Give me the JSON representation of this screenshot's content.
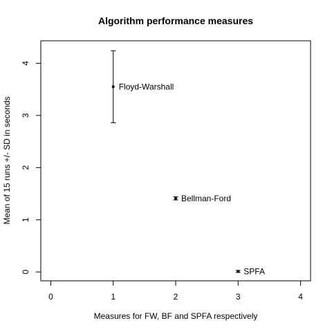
{
  "chart_data": {
    "type": "scatter",
    "title": "Algorithm performance measures",
    "xlabel": "Measures for FW, BF and SPFA respectively",
    "ylabel": "Mean of 15 runs +/- SD in seconds",
    "xlim": [
      -0.16,
      4.16
    ],
    "ylim": [
      -0.17,
      4.43
    ],
    "xticks": [
      0,
      1,
      2,
      3,
      4
    ],
    "yticks": [
      0,
      1,
      2,
      3,
      4
    ],
    "grid": false,
    "points": [
      {
        "name": "Floyd-Warshall",
        "x": 1,
        "y": 3.55,
        "sd": 0.69
      },
      {
        "name": "Bellman-Ford",
        "x": 2,
        "y": 1.41,
        "sd": 0.03
      },
      {
        "name": "SPFA",
        "x": 3,
        "y": 0.01,
        "sd": 0.02
      }
    ]
  }
}
